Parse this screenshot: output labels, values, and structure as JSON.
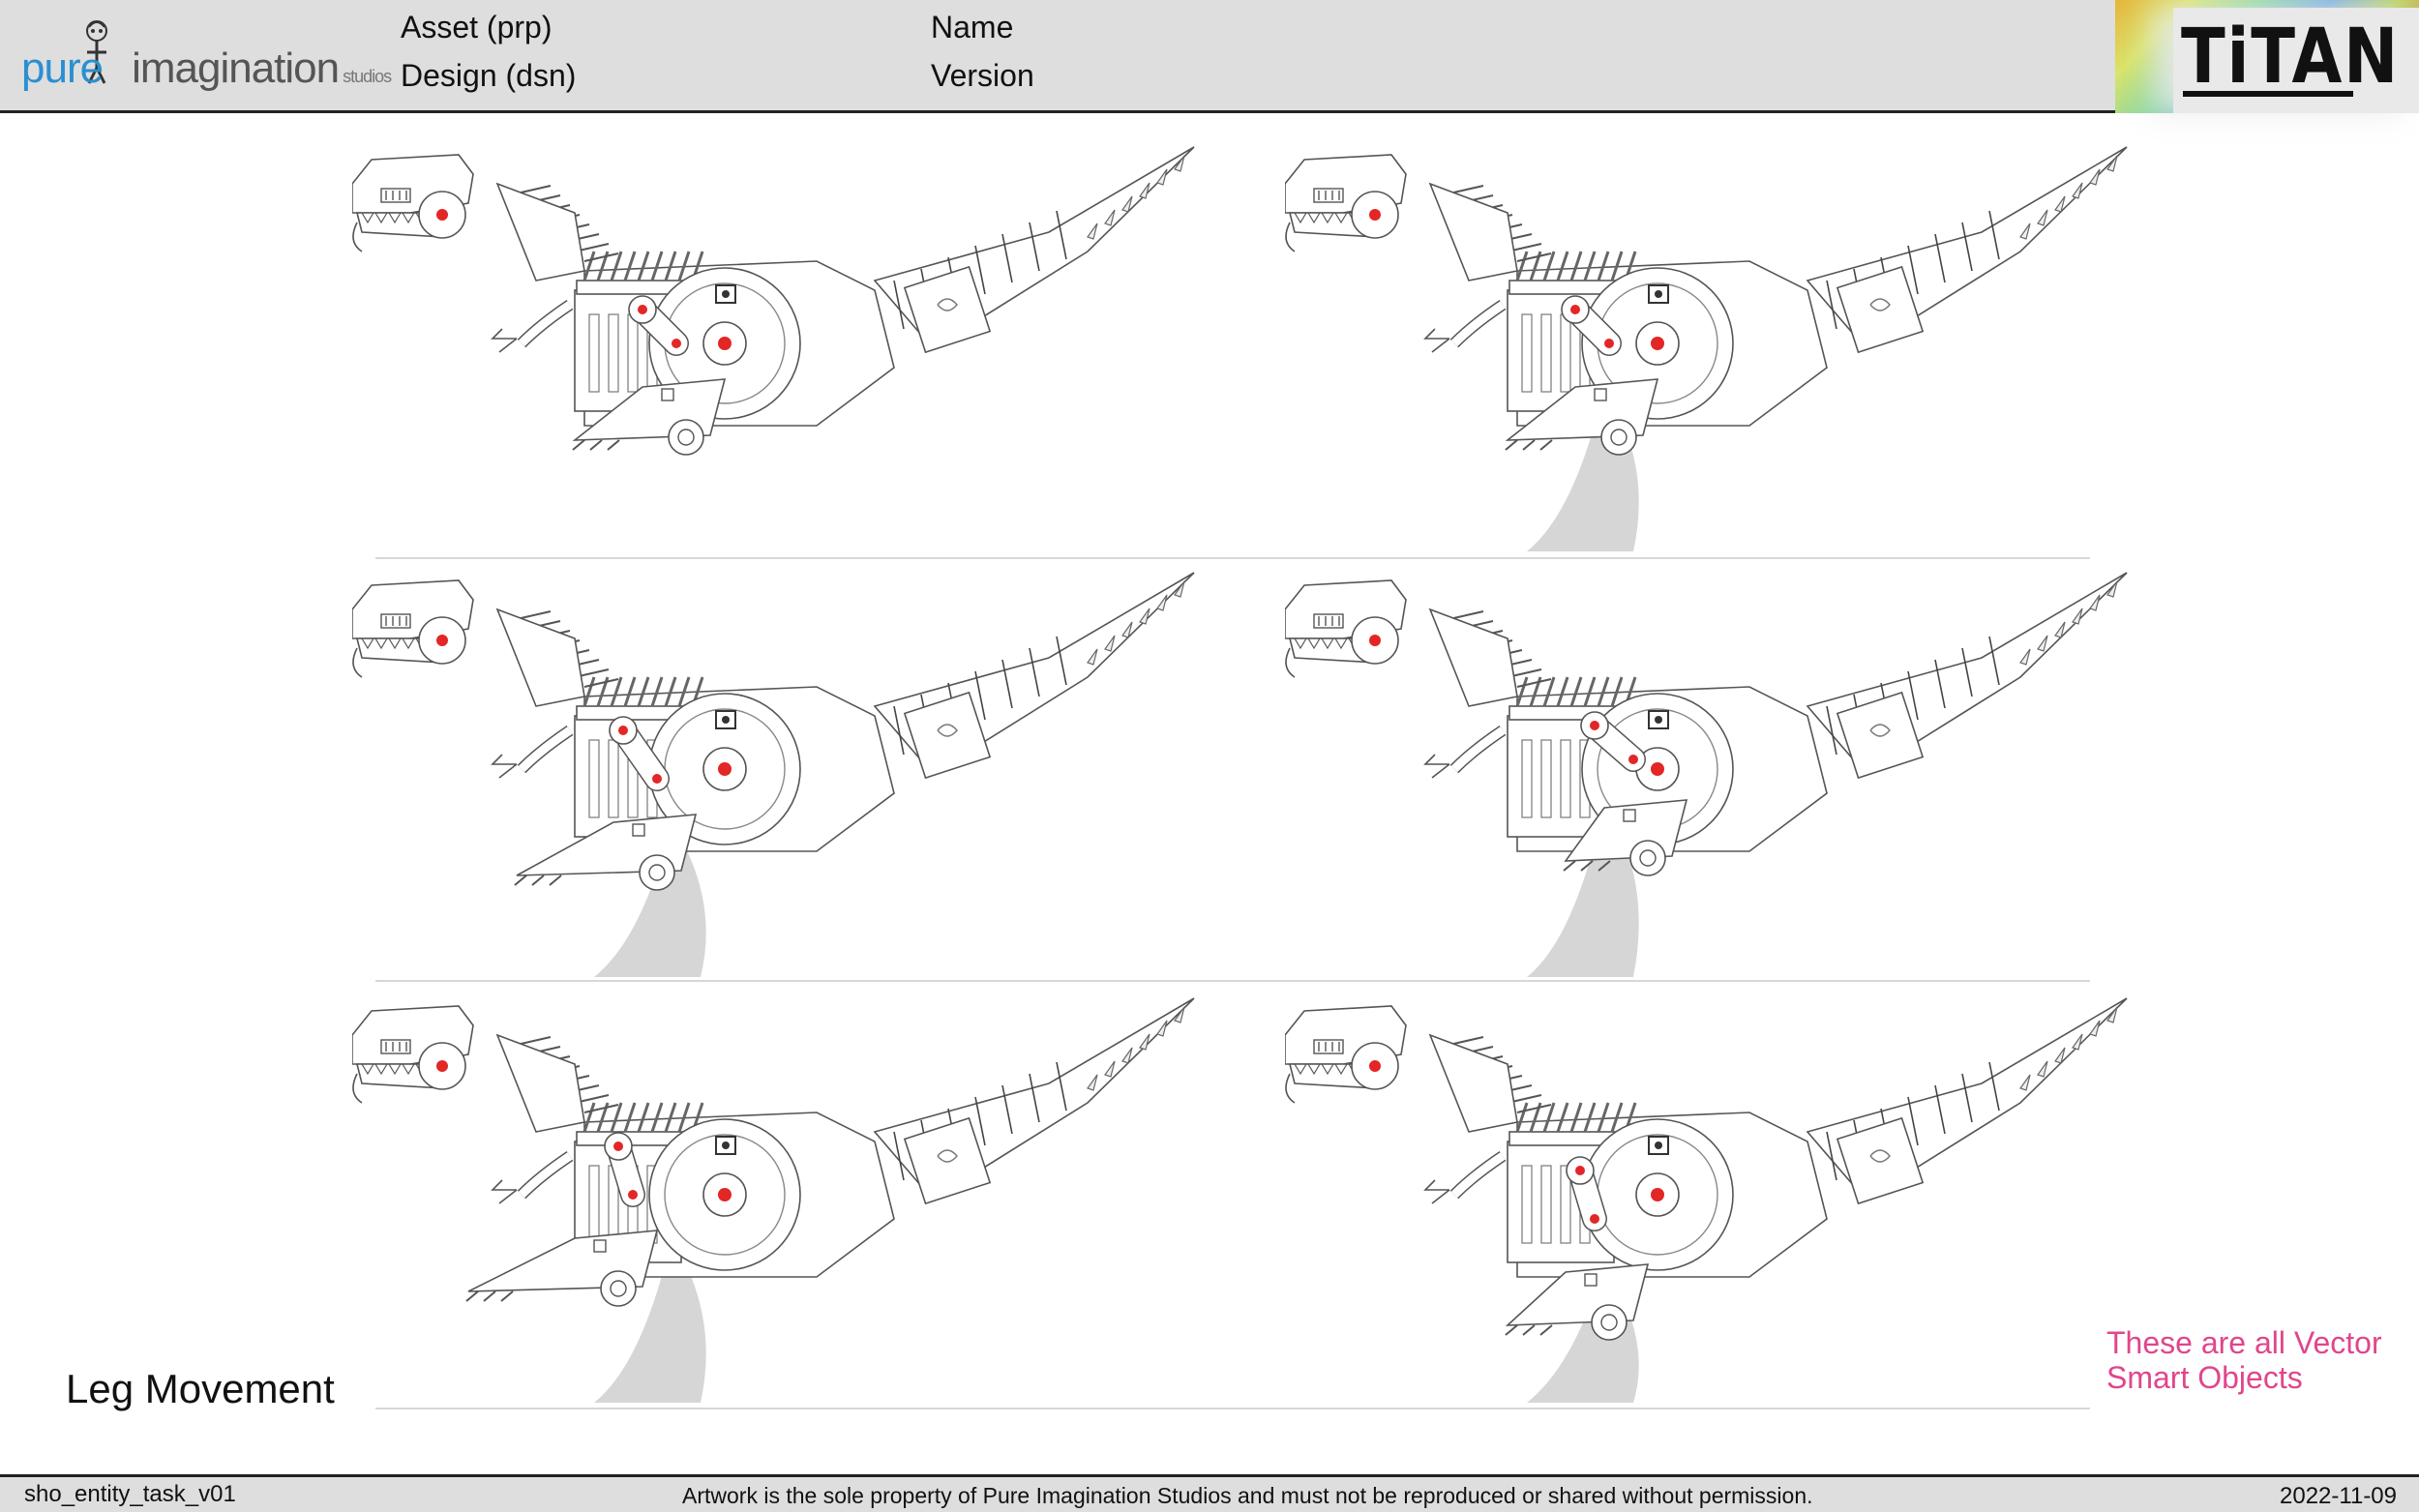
{
  "header": {
    "logo": {
      "word_pure": "pure",
      "word_imagination": "imagination",
      "word_studios": "studios"
    },
    "asset_label": "Asset (prp)",
    "design_label": "Design (dsn)",
    "name_label": "Name",
    "version_label": "Version",
    "titan_logo": "TiTAN"
  },
  "main": {
    "section_label": "Leg Movement",
    "note_line1": "These are all Vector",
    "note_line2": "Smart Objects",
    "panels": [
      {
        "id": "pose-1",
        "leg_pose": "standing",
        "shadow": false
      },
      {
        "id": "pose-2",
        "leg_pose": "standing",
        "shadow": true
      },
      {
        "id": "pose-3",
        "leg_pose": "forward-step",
        "shadow": true
      },
      {
        "id": "pose-4",
        "leg_pose": "back-step",
        "shadow": true
      },
      {
        "id": "pose-5",
        "leg_pose": "forward-lift",
        "shadow": true
      },
      {
        "id": "pose-6",
        "leg_pose": "long-stride",
        "shadow": true
      }
    ]
  },
  "footer": {
    "task_name": "sho_entity_task_v01",
    "copyright": "Artwork is the sole property of Pure Imagination Studios and must not be reproduced or shared without permission.",
    "date": "2022-11-09"
  },
  "colors": {
    "accent_note": "#e0468c",
    "eye_red": "#e32626",
    "logo_blue": "#2a8fd0"
  }
}
